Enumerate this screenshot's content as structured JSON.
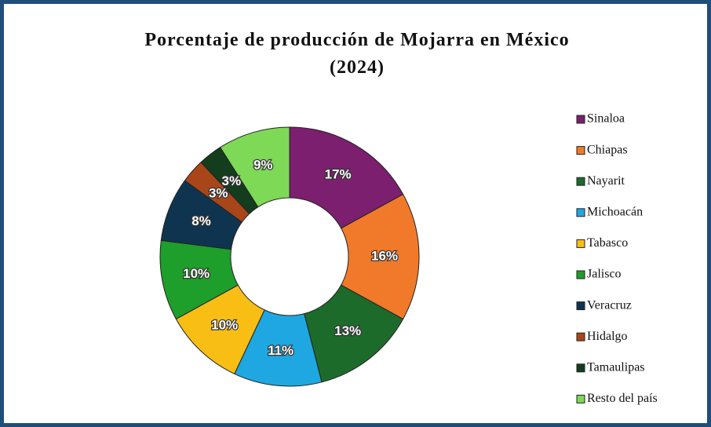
{
  "chart_data": {
    "type": "donut",
    "title": "Porcentaje de producción de Mojarra en México",
    "subtitle": "(2024)",
    "categories": [
      "Sinaloa",
      "Chiapas",
      "Nayarit",
      "Michoacán",
      "Tabasco",
      "Jalisco",
      "Veracruz",
      "Hidalgo",
      "Tamaulipas",
      "Resto del país"
    ],
    "values": [
      17,
      16,
      13,
      11,
      10,
      10,
      8,
      3,
      3,
      9
    ],
    "value_labels": [
      "17%",
      "16%",
      "13%",
      "11%",
      "10%",
      "10%",
      "8%",
      "3%",
      "3%",
      "9%"
    ],
    "colors": [
      "#7b1f6e",
      "#f07a2a",
      "#1d6b2a",
      "#1ea7e0",
      "#f8be14",
      "#1e9e2a",
      "#0f3450",
      "#a8461a",
      "#133d1c",
      "#7ed957"
    ],
    "legend": "right"
  }
}
